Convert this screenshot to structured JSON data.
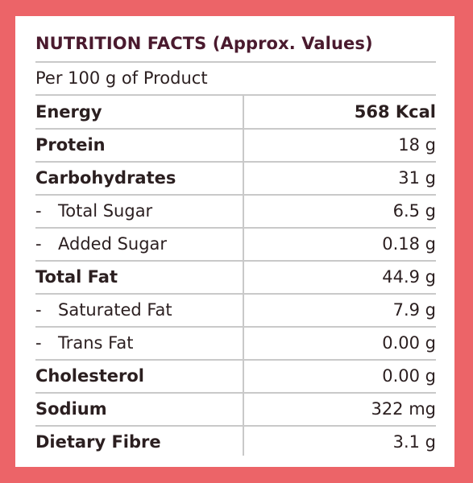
{
  "title": "NUTRITION FACTS (Approx. Values)",
  "subtitle": "Per 100 g of Product",
  "colors": {
    "background": "#ec6468",
    "panel": "#ffffff",
    "text": "#2b1f20",
    "title": "#4a1a2e",
    "rule": "#c9c9c9"
  },
  "rows": [
    {
      "label": "Energy",
      "value": "568 Kcal",
      "bold": true,
      "sub": false
    },
    {
      "label": "Protein",
      "value": "18 g",
      "bold": true,
      "sub": false
    },
    {
      "label": "Carbohydrates",
      "value": "31 g",
      "bold": true,
      "sub": false
    },
    {
      "label": "Total Sugar",
      "value": "6.5 g",
      "bold": false,
      "sub": true
    },
    {
      "label": "Added Sugar",
      "value": "0.18 g",
      "bold": false,
      "sub": true
    },
    {
      "label": "Total Fat",
      "value": "44.9 g",
      "bold": true,
      "sub": false
    },
    {
      "label": "Saturated Fat",
      "value": "7.9 g",
      "bold": false,
      "sub": true
    },
    {
      "label": "Trans Fat",
      "value": "0.00 g",
      "bold": false,
      "sub": true
    },
    {
      "label": "Cholesterol",
      "value": "0.00 g",
      "bold": true,
      "sub": false
    },
    {
      "label": "Sodium",
      "value": "322 mg",
      "bold": true,
      "sub": false
    },
    {
      "label": "Dietary Fibre",
      "value": "3.1 g",
      "bold": true,
      "sub": false
    }
  ],
  "sub_prefix": "-"
}
